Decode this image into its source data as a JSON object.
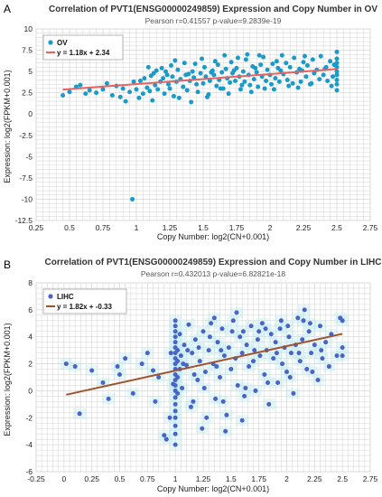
{
  "chart_data": [
    {
      "type": "scatter",
      "panel_label": "A",
      "title": "Correlation of PVT1(ENSG00000249859) Expression and Copy Number in OV",
      "subtitle": "Pearson r=0.41557 p-value=9.2839e-19",
      "xlabel": "Copy Number: log2(CN+0.001)",
      "ylabel": "Expression: log2(FPKM+0.001)",
      "xlim": [
        0.25,
        2.75
      ],
      "ylim": [
        -12.5,
        10
      ],
      "x_ticks": [
        "0.25",
        "0.5",
        "0.75",
        "1",
        "1.25",
        "1.5",
        "1.75",
        "2",
        "2.25",
        "2.5",
        "2.75"
      ],
      "y_ticks": [
        "-12.5",
        "-10",
        "-7.5",
        "-5",
        "-2.5",
        "0",
        "2.5",
        "5",
        "7.5",
        "10"
      ],
      "grid": true,
      "legend": {
        "position": "top-left",
        "series": "OV",
        "fit_label": "y = 1.18x + 2.34"
      },
      "fit": {
        "slope": 1.18,
        "intercept": 2.34,
        "x_range": [
          0.45,
          2.5
        ]
      },
      "point_color": "#1a9ac9",
      "line_color": "#e8625e",
      "points": [
        [
          0.45,
          2.2
        ],
        [
          0.5,
          2.6
        ],
        [
          0.55,
          3.2
        ],
        [
          0.58,
          3.4
        ],
        [
          0.62,
          2.4
        ],
        [
          0.65,
          2.8
        ],
        [
          0.7,
          2.5
        ],
        [
          0.75,
          2.9
        ],
        [
          0.78,
          3.6
        ],
        [
          0.82,
          2.2
        ],
        [
          0.85,
          3.3
        ],
        [
          0.88,
          2.0
        ],
        [
          0.9,
          3.0
        ],
        [
          0.92,
          1.5
        ],
        [
          0.95,
          2.6
        ],
        [
          0.97,
          -10
        ],
        [
          0.98,
          3.8
        ],
        [
          1.0,
          2.9
        ],
        [
          1.02,
          1.9
        ],
        [
          1.03,
          3.9
        ],
        [
          1.05,
          2.4
        ],
        [
          1.06,
          4.2
        ],
        [
          1.08,
          3.1
        ],
        [
          1.1,
          2.7
        ],
        [
          1.11,
          4.5
        ],
        [
          1.12,
          1.6
        ],
        [
          1.14,
          3.4
        ],
        [
          1.15,
          5.1
        ],
        [
          1.16,
          2.9
        ],
        [
          1.18,
          3.8
        ],
        [
          1.2,
          4.2
        ],
        [
          1.21,
          2.4
        ],
        [
          1.22,
          5.0
        ],
        [
          1.24,
          3.5
        ],
        [
          1.25,
          3.0
        ],
        [
          1.27,
          4.4
        ],
        [
          1.28,
          2.1
        ],
        [
          1.3,
          3.8
        ],
        [
          1.31,
          5.2
        ],
        [
          1.33,
          4.1
        ],
        [
          1.35,
          3.2
        ],
        [
          1.36,
          6.0
        ],
        [
          1.37,
          4.6
        ],
        [
          1.38,
          2.8
        ],
        [
          1.4,
          3.9
        ],
        [
          1.42,
          5.0
        ],
        [
          1.43,
          4.3
        ],
        [
          1.45,
          3.5
        ],
        [
          1.46,
          2.6
        ],
        [
          1.48,
          4.8
        ],
        [
          1.5,
          3.6
        ],
        [
          1.51,
          5.5
        ],
        [
          1.52,
          4.4
        ],
        [
          1.54,
          2.3
        ],
        [
          1.55,
          3.9
        ],
        [
          1.57,
          5.1
        ],
        [
          1.58,
          4.6
        ],
        [
          1.6,
          3.3
        ],
        [
          1.61,
          5.8
        ],
        [
          1.62,
          4.0
        ],
        [
          1.64,
          4.9
        ],
        [
          1.65,
          3.0
        ],
        [
          1.67,
          5.3
        ],
        [
          1.68,
          4.2
        ],
        [
          1.7,
          3.7
        ],
        [
          1.71,
          6.1
        ],
        [
          1.72,
          4.8
        ],
        [
          1.74,
          3.9
        ],
        [
          1.75,
          5.4
        ],
        [
          1.77,
          4.4
        ],
        [
          1.78,
          2.9
        ],
        [
          1.8,
          5.0
        ],
        [
          1.81,
          3.8
        ],
        [
          1.82,
          6.4
        ],
        [
          1.84,
          4.6
        ],
        [
          1.85,
          3.4
        ],
        [
          1.87,
          5.6
        ],
        [
          1.88,
          4.1
        ],
        [
          1.9,
          4.9
        ],
        [
          1.91,
          3.2
        ],
        [
          1.93,
          5.8
        ],
        [
          1.94,
          4.4
        ],
        [
          1.95,
          6.7
        ],
        [
          1.97,
          3.9
        ],
        [
          1.98,
          5.2
        ],
        [
          2.0,
          4.6
        ],
        [
          2.01,
          3.5
        ],
        [
          2.02,
          5.9
        ],
        [
          2.04,
          4.2
        ],
        [
          2.05,
          6.2
        ],
        [
          2.07,
          3.8
        ],
        [
          2.08,
          5.1
        ],
        [
          2.1,
          4.7
        ],
        [
          2.12,
          6.0
        ],
        [
          2.13,
          4.0
        ],
        [
          2.15,
          5.5
        ],
        [
          2.17,
          3.6
        ],
        [
          2.18,
          6.6
        ],
        [
          2.2,
          4.9
        ],
        [
          2.22,
          5.3
        ],
        [
          2.23,
          3.8
        ],
        [
          2.25,
          6.1
        ],
        [
          2.27,
          4.4
        ],
        [
          2.28,
          5.7
        ],
        [
          2.3,
          3.5
        ],
        [
          2.32,
          6.4
        ],
        [
          2.33,
          4.8
        ],
        [
          2.35,
          5.2
        ],
        [
          2.37,
          4.1
        ],
        [
          2.38,
          6.8
        ],
        [
          2.4,
          4.6
        ],
        [
          2.42,
          5.5
        ],
        [
          2.43,
          3.9
        ],
        [
          2.45,
          6.2
        ],
        [
          2.47,
          4.4
        ],
        [
          2.48,
          5.8
        ],
        [
          2.5,
          2.8
        ],
        [
          2.5,
          3.5
        ],
        [
          2.5,
          4.0
        ],
        [
          2.5,
          4.6
        ],
        [
          2.5,
          5.0
        ],
        [
          2.5,
          5.5
        ],
        [
          2.5,
          6.0
        ],
        [
          2.5,
          6.5
        ],
        [
          2.5,
          7.3
        ],
        [
          1.26,
          5.7
        ],
        [
          1.44,
          5.9
        ],
        [
          1.59,
          6.2
        ],
        [
          1.76,
          6.6
        ],
        [
          1.92,
          6.9
        ],
        [
          1.32,
          1.9
        ],
        [
          1.53,
          2.0
        ],
        [
          1.69,
          2.4
        ],
        [
          1.86,
          2.6
        ],
        [
          2.03,
          2.9
        ],
        [
          2.21,
          3.1
        ],
        [
          1.13,
          4.8
        ],
        [
          1.09,
          5.5
        ],
        [
          1.41,
          1.4
        ],
        [
          1.63,
          3.0
        ],
        [
          1.79,
          3.4
        ],
        [
          1.96,
          3.0
        ],
        [
          2.14,
          3.3
        ],
        [
          2.31,
          3.6
        ],
        [
          2.46,
          3.3
        ],
        [
          1.23,
          4.6
        ],
        [
          1.39,
          4.7
        ],
        [
          1.56,
          4.9
        ],
        [
          1.73,
          5.1
        ],
        [
          1.89,
          5.4
        ],
        [
          2.06,
          5.4
        ],
        [
          2.24,
          5.1
        ],
        [
          2.41,
          5.3
        ],
        [
          1.19,
          5.4
        ],
        [
          1.29,
          6.3
        ],
        [
          1.49,
          6.5
        ],
        [
          1.66,
          6.9
        ],
        [
          1.83,
          7.0
        ],
        [
          2.09,
          6.9
        ],
        [
          2.26,
          6.8
        ]
      ]
    },
    {
      "type": "scatter",
      "panel_label": "B",
      "title": "Correlation of PVT1(ENSG00000249859) Expression and Copy Number in LIHC",
      "subtitle": "Pearson r=0.432013 p-value=6.82821e-18",
      "xlabel": "Copy Number: log2(CN+0.001)",
      "ylabel": "Expression: log2(FPKM+0.001)",
      "xlim": [
        -0.25,
        2.75
      ],
      "ylim": [
        -6,
        8
      ],
      "x_ticks": [
        "-0.25",
        "0",
        "0.25",
        "0.5",
        "0.75",
        "1",
        "1.25",
        "1.5",
        "1.75",
        "2",
        "2.25",
        "2.5",
        "2.75"
      ],
      "y_ticks": [
        "-6",
        "-4",
        "-2",
        "0",
        "2",
        "4",
        "6",
        "8"
      ],
      "grid": true,
      "legend": {
        "position": "top-left",
        "series": "LIHC",
        "fit_label": "y = 1.82x + -0.33"
      },
      "fit": {
        "slope": 1.82,
        "intercept": -0.33,
        "x_range": [
          0.02,
          2.5
        ]
      },
      "point_color": "#4a63c5",
      "line_color": "#a0522d",
      "points": [
        [
          0.02,
          2.0
        ],
        [
          0.1,
          1.8
        ],
        [
          0.14,
          -1.7
        ],
        [
          0.25,
          1.5
        ],
        [
          0.35,
          0.6
        ],
        [
          0.4,
          -0.6
        ],
        [
          0.48,
          1.8
        ],
        [
          0.5,
          1.2
        ],
        [
          0.55,
          2.4
        ],
        [
          0.62,
          -0.2
        ],
        [
          0.7,
          2.0
        ],
        [
          0.75,
          2.8
        ],
        [
          0.8,
          1.5
        ],
        [
          0.82,
          -0.8
        ],
        [
          0.85,
          1.0
        ],
        [
          0.9,
          -3.3
        ],
        [
          0.92,
          -3.6
        ],
        [
          0.95,
          -2.0
        ],
        [
          0.96,
          2.8
        ],
        [
          0.98,
          0.5
        ],
        [
          1.0,
          -4.0
        ],
        [
          1.0,
          -3.2
        ],
        [
          1.0,
          -2.6
        ],
        [
          1.0,
          -2.0
        ],
        [
          1.0,
          -1.5
        ],
        [
          1.0,
          -1.0
        ],
        [
          1.0,
          -0.5
        ],
        [
          1.0,
          0.0
        ],
        [
          1.0,
          0.4
        ],
        [
          1.0,
          0.8
        ],
        [
          1.0,
          1.2
        ],
        [
          1.0,
          1.6
        ],
        [
          1.0,
          2.0
        ],
        [
          1.0,
          2.4
        ],
        [
          1.0,
          2.8
        ],
        [
          1.0,
          3.2
        ],
        [
          1.0,
          3.6
        ],
        [
          1.0,
          4.0
        ],
        [
          1.0,
          4.4
        ],
        [
          1.0,
          4.8
        ],
        [
          1.0,
          5.2
        ],
        [
          1.02,
          1.0
        ],
        [
          1.02,
          2.2
        ],
        [
          1.02,
          3.0
        ],
        [
          1.02,
          -0.2
        ],
        [
          1.04,
          1.6
        ],
        [
          1.04,
          4.2
        ],
        [
          1.05,
          2.6
        ],
        [
          1.06,
          0.2
        ],
        [
          1.08,
          3.4
        ],
        [
          1.1,
          1.9
        ],
        [
          1.12,
          4.9
        ],
        [
          1.14,
          -1.2
        ],
        [
          1.15,
          2.8
        ],
        [
          1.18,
          3.8
        ],
        [
          1.2,
          0.8
        ],
        [
          1.22,
          2.2
        ],
        [
          1.25,
          4.4
        ],
        [
          1.27,
          1.4
        ],
        [
          1.28,
          -2.0
        ],
        [
          1.3,
          3.0
        ],
        [
          1.32,
          5.0
        ],
        [
          1.34,
          2.0
        ],
        [
          1.36,
          -0.6
        ],
        [
          1.38,
          3.6
        ],
        [
          1.4,
          1.0
        ],
        [
          1.42,
          4.6
        ],
        [
          1.44,
          2.6
        ],
        [
          1.46,
          -1.8
        ],
        [
          1.48,
          3.2
        ],
        [
          1.5,
          1.6
        ],
        [
          1.52,
          5.2
        ],
        [
          1.54,
          2.4
        ],
        [
          1.56,
          0.4
        ],
        [
          1.58,
          4.0
        ],
        [
          1.6,
          2.8
        ],
        [
          1.62,
          -0.4
        ],
        [
          1.64,
          3.4
        ],
        [
          1.66,
          1.8
        ],
        [
          1.68,
          4.8
        ],
        [
          1.7,
          2.2
        ],
        [
          1.72,
          0.0
        ],
        [
          1.74,
          3.8
        ],
        [
          1.76,
          2.6
        ],
        [
          1.78,
          5.0
        ],
        [
          1.8,
          1.2
        ],
        [
          1.82,
          3.0
        ],
        [
          1.84,
          -1.0
        ],
        [
          1.86,
          4.2
        ],
        [
          1.88,
          2.4
        ],
        [
          1.9,
          3.6
        ],
        [
          1.92,
          0.6
        ],
        [
          1.94,
          4.6
        ],
        [
          1.96,
          2.0
        ],
        [
          1.98,
          3.2
        ],
        [
          2.0,
          1.4
        ],
        [
          2.02,
          4.0
        ],
        [
          2.04,
          2.8
        ],
        [
          2.06,
          -0.2
        ],
        [
          2.08,
          3.4
        ],
        [
          2.1,
          5.4
        ],
        [
          2.12,
          2.2
        ],
        [
          2.14,
          3.8
        ],
        [
          2.16,
          6.0
        ],
        [
          2.18,
          1.6
        ],
        [
          2.2,
          4.4
        ],
        [
          2.22,
          2.8
        ],
        [
          2.25,
          3.4
        ],
        [
          2.28,
          0.8
        ],
        [
          2.3,
          4.8
        ],
        [
          2.32,
          2.4
        ],
        [
          2.35,
          3.6
        ],
        [
          2.38,
          1.8
        ],
        [
          2.4,
          4.2
        ],
        [
          2.45,
          2.6
        ],
        [
          2.48,
          5.4
        ],
        [
          2.5,
          2.6
        ],
        [
          2.5,
          3.2
        ],
        [
          2.5,
          5.2
        ],
        [
          1.24,
          -2.8
        ],
        [
          1.45,
          -3.0
        ],
        [
          1.6,
          -2.2
        ],
        [
          1.35,
          5.4
        ],
        [
          1.55,
          5.8
        ],
        [
          1.75,
          4.4
        ],
        [
          1.95,
          5.2
        ],
        [
          2.15,
          5.2
        ],
        [
          1.16,
          -0.8
        ],
        [
          1.26,
          0.2
        ],
        [
          1.43,
          -0.8
        ],
        [
          1.63,
          0.2
        ],
        [
          1.83,
          0.6
        ],
        [
          2.03,
          1.0
        ],
        [
          2.23,
          1.4
        ],
        [
          1.21,
          3.2
        ],
        [
          1.41,
          3.0
        ],
        [
          1.61,
          4.4
        ],
        [
          1.81,
          4.6
        ],
        [
          2.01,
          4.8
        ],
        [
          2.21,
          5.0
        ],
        [
          1.11,
          3.0
        ],
        [
          1.31,
          4.0
        ],
        [
          1.51,
          4.4
        ],
        [
          1.71,
          3.0
        ],
        [
          1.91,
          2.8
        ],
        [
          2.11,
          2.8
        ],
        [
          2.31,
          3.0
        ],
        [
          1.07,
          2.0
        ],
        [
          1.17,
          1.2
        ],
        [
          1.37,
          1.8
        ]
      ]
    }
  ]
}
